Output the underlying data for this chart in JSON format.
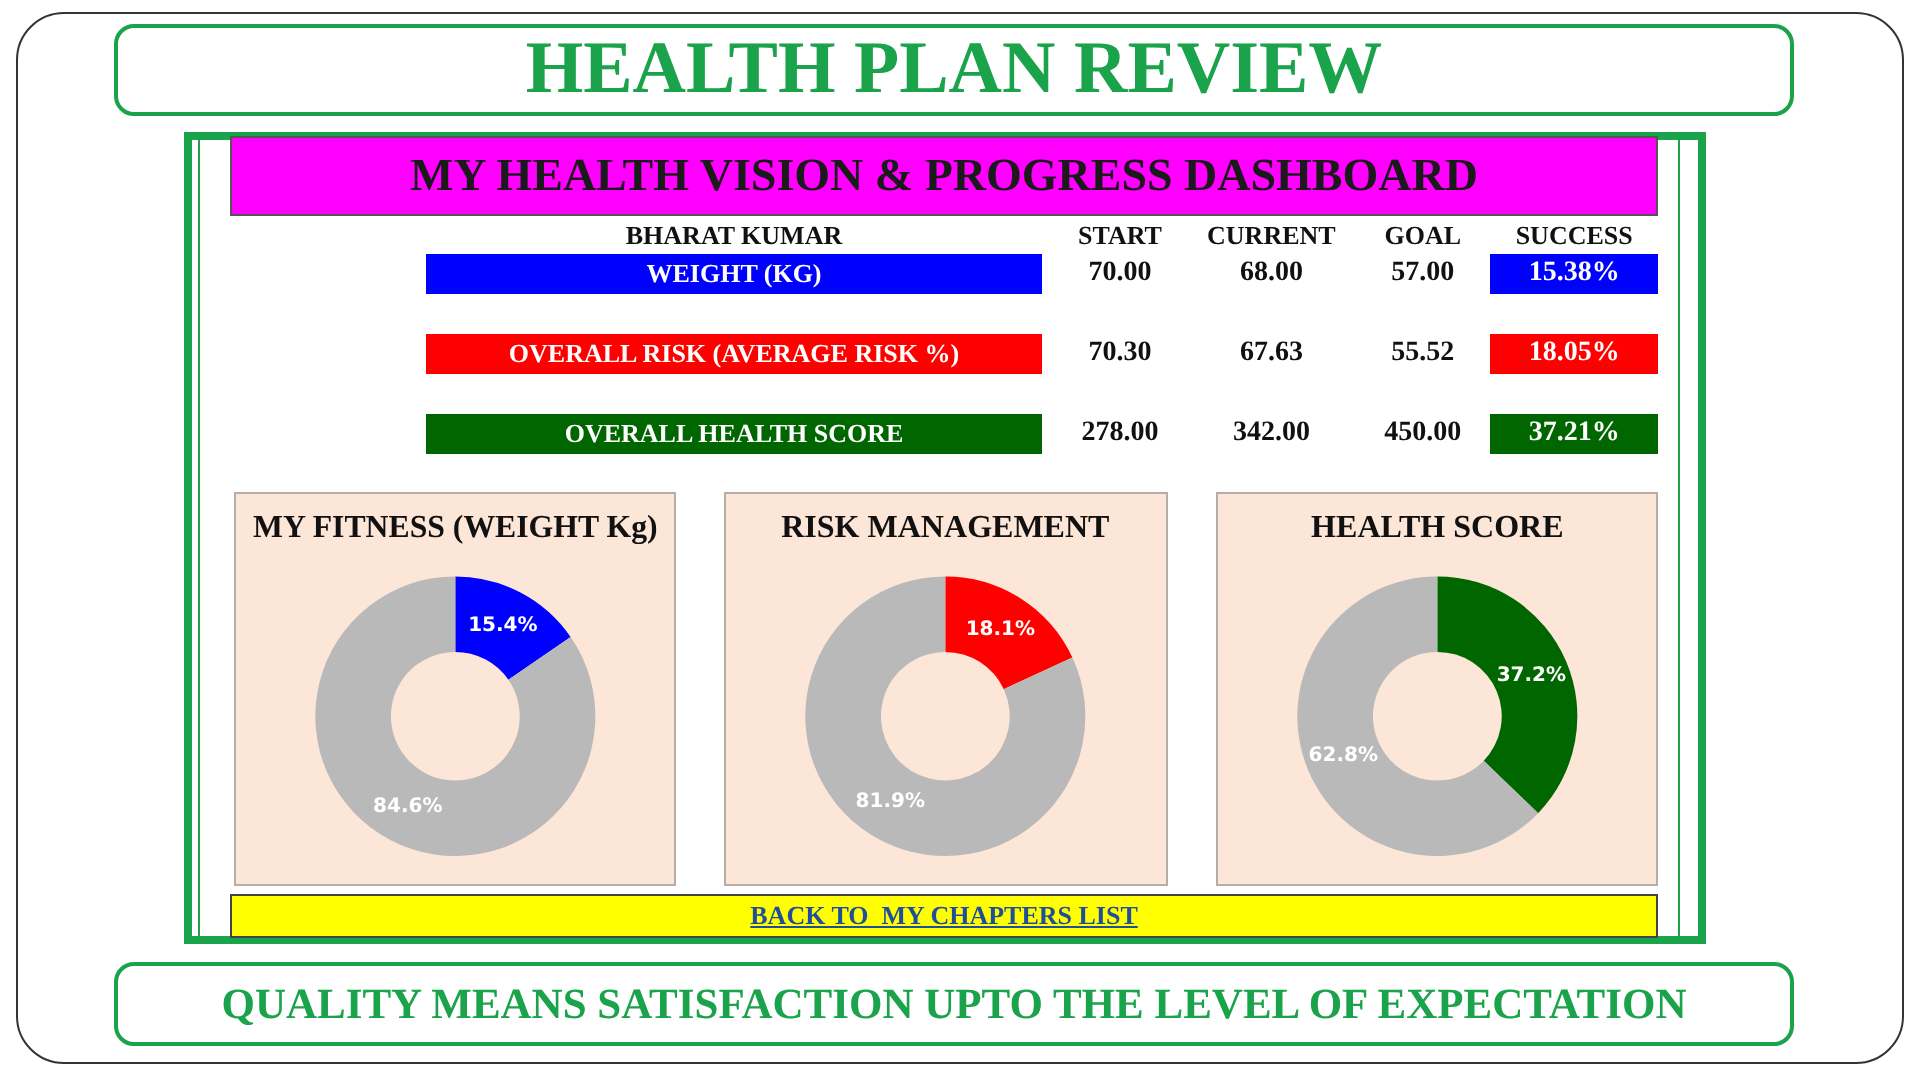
{
  "chart_data": [
    {
      "type": "other",
      "title": "HEALTH PLAN REVIEW",
      "subtitle": "MY HEALTH VISION & PROGRESS DASHBOARD",
      "ylabel": "BHARAT KUMAR",
      "categories": [
        "WEIGHT (KG)",
        "OVERALL RISK (AVERAGE RISK %)",
        "OVERALL HEALTH SCORE"
      ],
      "colors": [
        "#0000ff",
        "#ff0000",
        "#006600"
      ],
      "series": [
        {
          "name": "START",
          "values": [
            70.0,
            70.3,
            278.0
          ],
          "value_labels": [
            "70.00",
            "70.30",
            "278.00"
          ]
        },
        {
          "name": "CURRENT",
          "values": [
            68.0,
            67.63,
            342.0
          ],
          "value_labels": [
            "68.00",
            "67.63",
            "342.00"
          ]
        },
        {
          "name": "GOAL",
          "values": [
            57.0,
            55.52,
            450.0
          ],
          "value_labels": [
            "57.00",
            "55.52",
            "450.00"
          ]
        },
        {
          "name": "SUCCESS",
          "values": [
            15.38,
            18.05,
            37.21
          ],
          "value_labels": [
            "15.38%",
            "18.05%",
            "37.21%"
          ],
          "colors": [
            "#0000ff",
            "#ff0000",
            "#006600"
          ]
        }
      ],
      "annotations": [
        "BACK TO  MY CHAPTERS LIST",
        "QUALITY MEANS SATISFACTION UPTO THE LEVEL OF EXPECTATION"
      ]
    },
    {
      "type": "donut",
      "title": "MY FITNESS (WEIGHT Kg)",
      "categories": [
        null,
        null
      ],
      "values": [
        15.4,
        84.6
      ],
      "colors": [
        "#0000ff",
        "#b9b9b9"
      ],
      "value_labels": [
        "15.4%",
        "84.6%"
      ]
    },
    {
      "type": "donut",
      "title": "RISK MANAGEMENT",
      "categories": [
        null,
        null
      ],
      "values": [
        18.1,
        81.9
      ],
      "colors": [
        "#ff0000",
        "#b9b9b9"
      ],
      "value_labels": [
        "18.1%",
        "81.9%"
      ]
    },
    {
      "type": "donut",
      "title": "HEALTH SCORE",
      "categories": [
        null,
        null
      ],
      "values": [
        37.2,
        62.8
      ],
      "colors": [
        "#006600",
        "#b9b9b9"
      ],
      "value_labels": [
        "37.2%",
        "62.8%"
      ]
    }
  ]
}
